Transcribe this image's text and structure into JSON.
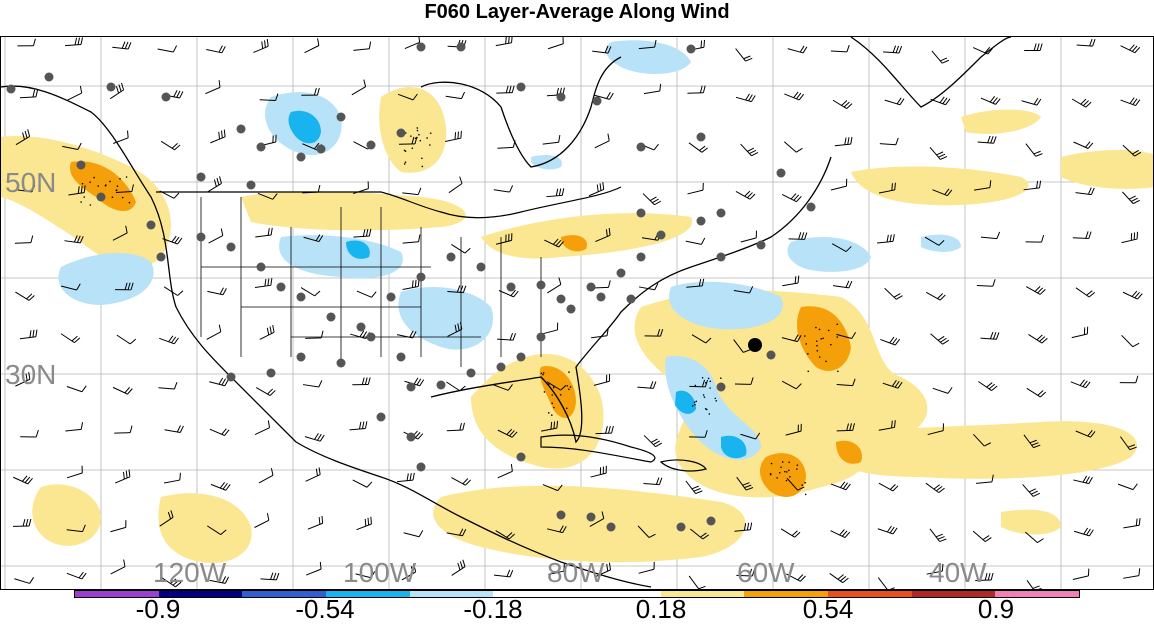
{
  "title": "F060 Layer-Average Along Wind",
  "latitude_labels": [
    "50N",
    "30N"
  ],
  "longitude_labels": [
    "120W",
    "100W",
    "80W",
    "60W",
    "40W"
  ],
  "colorbar": {
    "colors": [
      "#9b3fcf",
      "#000080",
      "#3060d0",
      "#18b4f0",
      "#b8e2f8",
      "#ffffff",
      "#ffffff",
      "#fbe691",
      "#f5a00a",
      "#e85020",
      "#b02828",
      "#f080b8"
    ],
    "tick_labels": [
      "-0.9",
      "-0.54",
      "-0.18",
      "0.18",
      "0.54",
      "0.9"
    ]
  },
  "colors": {
    "grid": "#b4b4b4",
    "coastline": "#000000",
    "station_marker": "#555555",
    "positive_light": "#fbe691",
    "positive_strong": "#f5a00a",
    "negative_light": "#b8e2f8",
    "negative_strong": "#18b4f0"
  }
}
